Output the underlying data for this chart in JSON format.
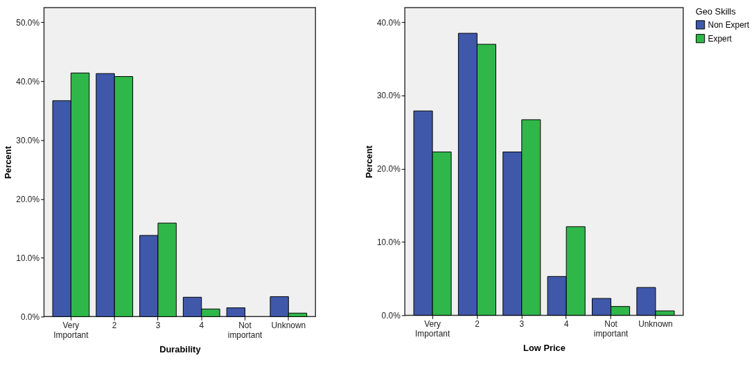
{
  "chart_data": [
    {
      "type": "bar",
      "xlabel": "Durability",
      "ylabel": "Percent",
      "categories": [
        "Very Important",
        "2",
        "3",
        "4",
        "Not important",
        "Unknown"
      ],
      "series": [
        {
          "color": "#3f58aa",
          "values": [
            36.7,
            41.3,
            13.8,
            3.3,
            1.5,
            3.4
          ]
        },
        {
          "color": "#2fb74a",
          "values": [
            41.4,
            40.8,
            15.9,
            1.3,
            null,
            0.6
          ]
        }
      ],
      "ylim": [
        0,
        52.5
      ],
      "yticks": [
        {
          "value": 0,
          "label": "0.0%"
        },
        {
          "value": 10,
          "label": "10.0%"
        },
        {
          "value": 20,
          "label": "20.0%"
        },
        {
          "value": 30,
          "label": "30.0%"
        },
        {
          "value": 40,
          "label": "40.0%"
        },
        {
          "value": 50,
          "label": "50.0%"
        }
      ],
      "grid": false,
      "legend": false
    },
    {
      "type": "bar",
      "xlabel": "Low Price",
      "ylabel": "Percent",
      "legend_title": "Geo Skills",
      "categories": [
        "Very Important",
        "2",
        "3",
        "4",
        "Not important",
        "Unknown"
      ],
      "series": [
        {
          "name": "Non Expert",
          "color": "#3f58aa",
          "values": [
            27.9,
            38.5,
            22.3,
            5.3,
            2.3,
            3.8
          ]
        },
        {
          "name": "Expert",
          "color": "#2fb74a",
          "values": [
            22.3,
            37.0,
            26.7,
            12.1,
            1.2,
            0.6
          ]
        }
      ],
      "ylim": [
        0,
        42
      ],
      "yticks": [
        {
          "value": 0,
          "label": "0.0%"
        },
        {
          "value": 10,
          "label": "10.0%"
        },
        {
          "value": 20,
          "label": "20.0%"
        },
        {
          "value": 30,
          "label": "30.0%"
        },
        {
          "value": 40,
          "label": "40.0%"
        }
      ],
      "grid": false,
      "legend": "top right"
    }
  ]
}
